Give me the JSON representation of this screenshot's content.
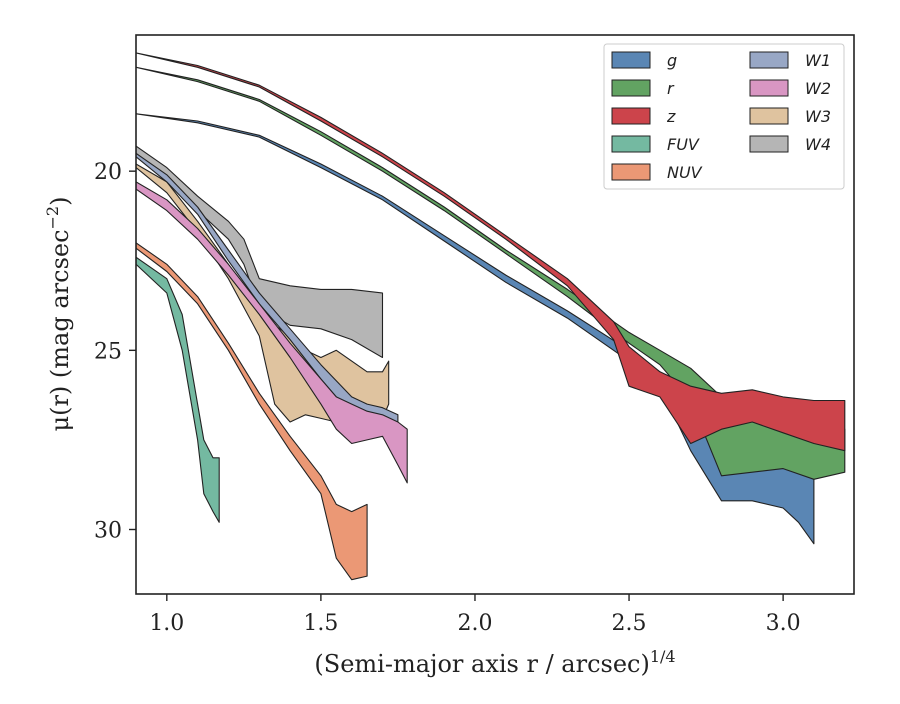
{
  "chart_data": {
    "type": "area",
    "title": "",
    "xlabel": "(Semi-major axis r / arcsec)",
    "xlabel_exponent": "1/4",
    "ylabel": "μ(r) (mag arcsec",
    "ylabel_exponent": "−2",
    "ylabel_close": ")",
    "xlim": [
      0.9,
      3.23
    ],
    "ylim": [
      31.8,
      16.2
    ],
    "y_inverted": true,
    "xticks": [
      1.0,
      1.5,
      2.0,
      2.5,
      3.0
    ],
    "xtick_labels": [
      "1.0",
      "1.5",
      "2.0",
      "2.5",
      "3.0"
    ],
    "yticks": [
      20,
      25,
      30
    ],
    "ytick_labels": [
      "20",
      "25",
      "30"
    ],
    "grid": false,
    "legend_position": "top-right",
    "legend_columns": 2,
    "series": [
      {
        "name": "g",
        "color": "#5a86b4",
        "x": [
          0.9,
          1.1,
          1.3,
          1.5,
          1.7,
          1.9,
          2.1,
          2.3,
          2.5,
          2.6,
          2.7,
          2.75,
          2.8,
          2.9,
          3.0,
          3.05,
          3.1
        ],
        "low": [
          18.4,
          18.6,
          19.0,
          19.8,
          20.7,
          21.8,
          22.9,
          23.9,
          25.0,
          25.6,
          26.3,
          27.0,
          27.6,
          27.3,
          27.4,
          28.2,
          28.4
        ],
        "high": [
          18.4,
          18.65,
          19.05,
          19.9,
          20.8,
          21.95,
          23.1,
          24.1,
          25.3,
          26.0,
          27.8,
          28.5,
          29.2,
          29.2,
          29.4,
          29.8,
          30.4
        ]
      },
      {
        "name": "r",
        "color": "#62a362",
        "x": [
          0.9,
          1.1,
          1.3,
          1.5,
          1.7,
          1.9,
          2.1,
          2.3,
          2.5,
          2.6,
          2.7,
          2.8,
          2.9,
          3.0,
          3.1,
          3.2
        ],
        "low": [
          17.1,
          17.45,
          18.0,
          18.9,
          19.9,
          21.0,
          22.2,
          23.3,
          24.5,
          25.0,
          25.5,
          26.3,
          26.8,
          27.1,
          27.0,
          27.2
        ],
        "high": [
          17.1,
          17.5,
          18.05,
          19.0,
          20.0,
          21.1,
          22.3,
          23.5,
          24.8,
          25.4,
          26.4,
          28.5,
          28.4,
          28.3,
          28.6,
          28.4
        ]
      },
      {
        "name": "z",
        "color": "#cc444b",
        "x": [
          0.9,
          1.1,
          1.3,
          1.5,
          1.7,
          1.9,
          2.1,
          2.3,
          2.45,
          2.5,
          2.6,
          2.7,
          2.8,
          2.9,
          3.0,
          3.1,
          3.2
        ],
        "low": [
          16.7,
          17.05,
          17.6,
          18.5,
          19.5,
          20.6,
          21.8,
          23.0,
          24.2,
          24.9,
          25.6,
          26.0,
          26.2,
          26.1,
          26.3,
          26.4,
          26.4
        ],
        "high": [
          16.7,
          17.1,
          17.65,
          18.6,
          19.6,
          20.7,
          21.9,
          23.2,
          24.7,
          26.0,
          26.3,
          27.6,
          27.2,
          27.0,
          27.3,
          27.6,
          27.8
        ]
      },
      {
        "name": "FUV",
        "color": "#74b9a1",
        "x": [
          0.9,
          1.0,
          1.05,
          1.1,
          1.12,
          1.15,
          1.17
        ],
        "low": [
          22.4,
          23.0,
          24.0,
          26.5,
          27.5,
          28.0,
          28.0
        ],
        "high": [
          22.6,
          23.4,
          25.0,
          27.5,
          29.0,
          29.5,
          29.8
        ]
      },
      {
        "name": "NUV",
        "color": "#eb9875",
        "x": [
          0.9,
          1.0,
          1.1,
          1.2,
          1.3,
          1.4,
          1.5,
          1.55,
          1.6,
          1.65
        ],
        "low": [
          22.0,
          22.6,
          23.5,
          24.8,
          26.2,
          27.4,
          28.5,
          29.3,
          29.5,
          29.3
        ],
        "high": [
          22.15,
          22.8,
          23.7,
          25.0,
          26.5,
          27.8,
          29.0,
          30.8,
          31.4,
          31.3
        ]
      },
      {
        "name": "W1",
        "color": "#98a7c5",
        "x": [
          0.9,
          1.0,
          1.1,
          1.2,
          1.3,
          1.4,
          1.5,
          1.6,
          1.65,
          1.7,
          1.75
        ],
        "low": [
          19.5,
          20.1,
          21.0,
          22.2,
          23.4,
          24.4,
          25.4,
          26.3,
          26.5,
          26.6,
          26.8
        ],
        "high": [
          19.6,
          20.3,
          21.2,
          22.5,
          23.7,
          24.7,
          25.8,
          26.8,
          27.1,
          27.0,
          27.3
        ]
      },
      {
        "name": "W2",
        "color": "#d996c3",
        "x": [
          0.9,
          1.0,
          1.1,
          1.2,
          1.3,
          1.4,
          1.5,
          1.55,
          1.6,
          1.65,
          1.7,
          1.75,
          1.78
        ],
        "low": [
          20.3,
          20.8,
          21.6,
          22.6,
          23.7,
          24.8,
          25.8,
          26.3,
          26.5,
          26.7,
          26.8,
          27.0,
          27.2
        ],
        "high": [
          20.5,
          21.1,
          21.9,
          22.9,
          24.0,
          25.2,
          26.5,
          27.2,
          27.6,
          27.5,
          27.4,
          28.2,
          28.7
        ]
      },
      {
        "name": "W3",
        "color": "#dfc39f",
        "x": [
          0.9,
          1.0,
          1.1,
          1.2,
          1.3,
          1.35,
          1.4,
          1.45,
          1.5,
          1.55,
          1.6,
          1.65,
          1.7,
          1.72
        ],
        "low": [
          19.8,
          20.3,
          21.4,
          22.6,
          23.8,
          24.3,
          24.6,
          25.0,
          25.2,
          25.0,
          25.3,
          25.6,
          25.6,
          25.3
        ],
        "high": [
          19.9,
          20.6,
          21.7,
          23.0,
          24.6,
          26.5,
          27.0,
          26.8,
          26.9,
          27.0,
          26.7,
          26.7,
          26.9,
          26.5
        ]
      },
      {
        "name": "W4",
        "color": "#b5b5b5",
        "x": [
          0.9,
          1.0,
          1.1,
          1.2,
          1.25,
          1.3,
          1.4,
          1.5,
          1.6,
          1.7
        ],
        "low": [
          19.3,
          19.9,
          20.7,
          21.4,
          21.9,
          23.0,
          23.2,
          23.3,
          23.3,
          23.4
        ],
        "high": [
          19.5,
          20.2,
          21.1,
          21.9,
          22.6,
          23.8,
          24.3,
          24.4,
          24.7,
          25.2
        ]
      }
    ]
  }
}
